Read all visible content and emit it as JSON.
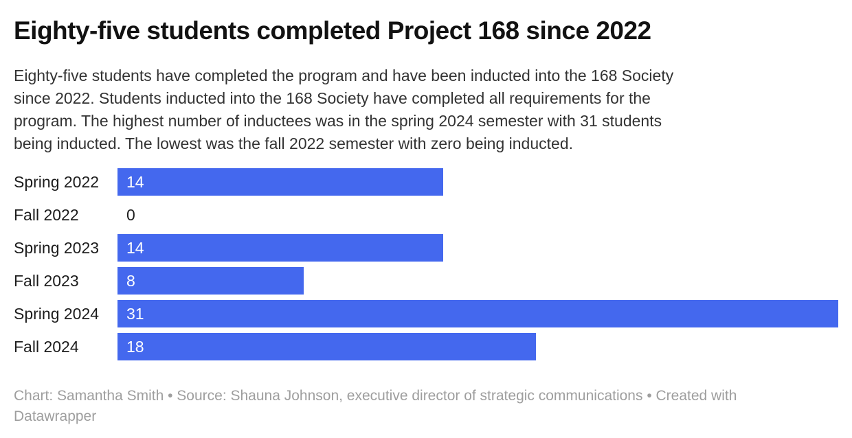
{
  "header": {
    "title": "Eighty-five students completed Project 168 since 2022",
    "description_lines": [
      "Eighty-five students have completed the program and have been inducted into the 168 Society",
      "since 2022. Students inducted into the 168 Society have completed all requirements for the",
      "program. The highest number of inductees was in the spring 2024 semester with 31 students",
      "being inducted. The lowest was the fall 2022 semester with zero being inducted."
    ]
  },
  "chart_data": {
    "type": "bar",
    "orientation": "horizontal",
    "title": "Eighty-five students completed Project 168 since 2022",
    "categories": [
      "Spring 2022",
      "Fall 2022",
      "Spring 2023",
      "Fall 2023",
      "Spring 2024",
      "Fall 2024"
    ],
    "values": [
      14,
      0,
      14,
      8,
      31,
      18
    ],
    "xlim": [
      0,
      31
    ],
    "value_labels": "inside-bar-left",
    "grid": false,
    "legend": "none",
    "xlabel": "",
    "ylabel": ""
  },
  "footer": {
    "text": "Chart: Samantha Smith • Source: Shauna Johnson, executive director of strategic communications • Created with Datawrapper"
  },
  "colors": {
    "background": "#ffffff",
    "title": "#121212",
    "description": "#333333",
    "category_label": "#1d1d1d",
    "bar": "#4468ee",
    "bar_value_label": "#ffffff",
    "zero_value_label": "#1d1d1d",
    "footer": "#9e9e9e"
  }
}
